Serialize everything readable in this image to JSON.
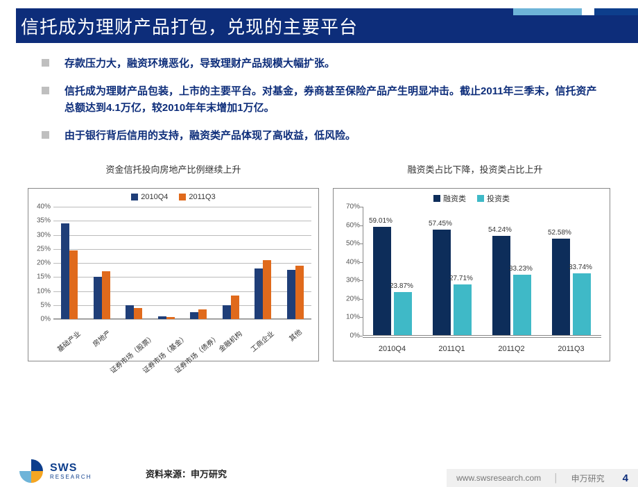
{
  "colors": {
    "title_bg": "#0d2d7a",
    "title_fg": "#ffffff",
    "bullet_marker": "#bfbfbf",
    "bullet_text": "#0d2d7a",
    "series_a": "#1f3e78",
    "series_b": "#e06a1c",
    "series_c": "#0d2d5a",
    "series_d": "#3fb9c7",
    "grid": "#bbbbbb",
    "axis_text": "#555555"
  },
  "title": "信托成为理财产品打包，兑现的主要平台",
  "bullets": [
    "存款压力大，融资环境恶化，导致理财产品规模大幅扩张。",
    "信托成为理财产品包装，上市的主要平台。对基金，券商甚至保险产品产生明显冲击。截止2011年三季末，信托资产总额达到4.1万亿，较2010年年末增加1万亿。",
    "由于银行背后信用的支持，融资类产品体现了高收益，低风险。"
  ],
  "chart_left": {
    "title": "资金信托投向房地产比例继续上升",
    "type": "grouped-bar",
    "legend": [
      "2010Q4",
      "2011Q3"
    ],
    "legend_colors": [
      "#1f3e78",
      "#e06a1c"
    ],
    "y_max": 40,
    "y_step": 5,
    "y_suffix": "%",
    "categories": [
      "基础产业",
      "房地产",
      "证券市场（股票）",
      "证券市场（基金）",
      "证券市场（债券）",
      "金融机构",
      "工商企业",
      "其他"
    ],
    "series": [
      [
        34,
        15,
        5,
        1,
        2.5,
        5,
        18,
        17.5
      ],
      [
        24.5,
        17,
        4,
        0.7,
        3.5,
        8.5,
        21,
        19
      ]
    ]
  },
  "chart_right": {
    "title": "融资类占比下降，投资类占比上升",
    "type": "grouped-bar",
    "legend": [
      "融资类",
      "投资类"
    ],
    "legend_colors": [
      "#0d2d5a",
      "#3fb9c7"
    ],
    "y_max": 70,
    "y_step": 10,
    "y_suffix": "%",
    "categories": [
      "2010Q4",
      "2011Q1",
      "2011Q2",
      "2011Q3"
    ],
    "series": [
      [
        59.01,
        57.45,
        54.24,
        52.58
      ],
      [
        23.87,
        27.71,
        33.23,
        33.74
      ]
    ],
    "labels_a": [
      "59.01%",
      "57.45%",
      "54.24%",
      "52.58%"
    ],
    "labels_b": [
      "23.87%",
      "27.71%",
      "33.23%",
      "33.74%"
    ]
  },
  "source": "资料来源：申万研究",
  "footer": {
    "url": "www.swsresearch.com",
    "brand": "申万研究",
    "page": "4"
  },
  "logo": {
    "main": "SWS",
    "sub": "RESEARCH"
  }
}
